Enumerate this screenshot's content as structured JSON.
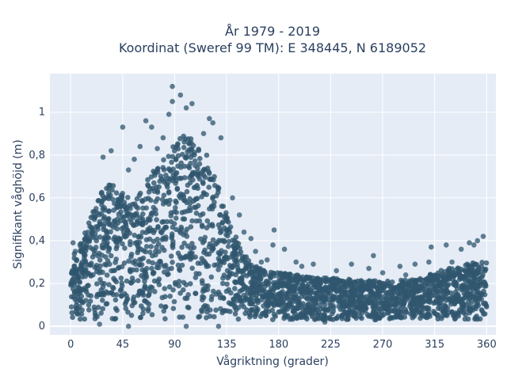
{
  "chart_data": {
    "type": "scatter",
    "title_lines": [
      "År 1979 - 2019",
      "Koordinat (Sweref 99 TM): E 348445, N 6189052"
    ],
    "xlabel": "Vågriktning (grader)",
    "ylabel": "Signifikant våghöjd (m)",
    "xlim": [
      -18,
      368
    ],
    "ylim": [
      -0.04,
      1.18
    ],
    "xticks": [
      0,
      45,
      90,
      135,
      180,
      225,
      270,
      315,
      360
    ],
    "yticks": [
      {
        "value": 0,
        "label": "0"
      },
      {
        "value": 0.2,
        "label": "0,2"
      },
      {
        "value": 0.4,
        "label": "0,4"
      },
      {
        "value": 0.6,
        "label": "0,6"
      },
      {
        "value": 0.8,
        "label": "0,8"
      },
      {
        "value": 1,
        "label": "1"
      }
    ],
    "grid": true,
    "marker_color": "#2f566e",
    "background_color": "#e5ecf6",
    "envelope": [
      {
        "x": 0,
        "y": 0.33
      },
      {
        "x": 10,
        "y": 0.4
      },
      {
        "x": 20,
        "y": 0.55
      },
      {
        "x": 30,
        "y": 0.68
      },
      {
        "x": 40,
        "y": 0.66
      },
      {
        "x": 50,
        "y": 0.6
      },
      {
        "x": 60,
        "y": 0.62
      },
      {
        "x": 70,
        "y": 0.72
      },
      {
        "x": 80,
        "y": 0.78
      },
      {
        "x": 90,
        "y": 0.86
      },
      {
        "x": 100,
        "y": 0.9
      },
      {
        "x": 110,
        "y": 0.86
      },
      {
        "x": 120,
        "y": 0.8
      },
      {
        "x": 130,
        "y": 0.62
      },
      {
        "x": 140,
        "y": 0.45
      },
      {
        "x": 150,
        "y": 0.34
      },
      {
        "x": 160,
        "y": 0.28
      },
      {
        "x": 180,
        "y": 0.25
      },
      {
        "x": 210,
        "y": 0.23
      },
      {
        "x": 240,
        "y": 0.22
      },
      {
        "x": 270,
        "y": 0.21
      },
      {
        "x": 300,
        "y": 0.22
      },
      {
        "x": 320,
        "y": 0.26
      },
      {
        "x": 340,
        "y": 0.29
      },
      {
        "x": 360,
        "y": 0.31
      }
    ],
    "lower_bound": 0.03,
    "outliers": [
      {
        "x": 88,
        "y": 1.12
      },
      {
        "x": 95,
        "y": 1.08
      },
      {
        "x": 88,
        "y": 1.05
      },
      {
        "x": 100,
        "y": 1.02
      },
      {
        "x": 105,
        "y": 1.04
      },
      {
        "x": 85,
        "y": 0.99
      },
      {
        "x": 120,
        "y": 0.97
      },
      {
        "x": 123,
        "y": 0.95
      },
      {
        "x": 65,
        "y": 0.96
      },
      {
        "x": 70,
        "y": 0.93
      },
      {
        "x": 45,
        "y": 0.93
      },
      {
        "x": 35,
        "y": 0.82
      },
      {
        "x": 28,
        "y": 0.79
      },
      {
        "x": 60,
        "y": 0.84
      },
      {
        "x": 80,
        "y": 0.88
      },
      {
        "x": 130,
        "y": 0.88
      },
      {
        "x": 115,
        "y": 0.9
      },
      {
        "x": 140,
        "y": 0.6
      },
      {
        "x": 146,
        "y": 0.52
      },
      {
        "x": 150,
        "y": 0.44
      },
      {
        "x": 156,
        "y": 0.41
      },
      {
        "x": 160,
        "y": 0.35
      },
      {
        "x": 165,
        "y": 0.3
      },
      {
        "x": 170,
        "y": 0.31
      },
      {
        "x": 176,
        "y": 0.45
      },
      {
        "x": 175,
        "y": 0.38
      },
      {
        "x": 185,
        "y": 0.36
      },
      {
        "x": 195,
        "y": 0.3
      },
      {
        "x": 200,
        "y": 0.28
      },
      {
        "x": 210,
        "y": 0.29
      },
      {
        "x": 243,
        "y": 0.29
      },
      {
        "x": 262,
        "y": 0.33
      },
      {
        "x": 258,
        "y": 0.27
      },
      {
        "x": 285,
        "y": 0.28
      },
      {
        "x": 298,
        "y": 0.29
      },
      {
        "x": 312,
        "y": 0.37
      },
      {
        "x": 310,
        "y": 0.3
      },
      {
        "x": 325,
        "y": 0.38
      },
      {
        "x": 330,
        "y": 0.3
      },
      {
        "x": 338,
        "y": 0.36
      },
      {
        "x": 345,
        "y": 0.39
      },
      {
        "x": 349,
        "y": 0.38
      },
      {
        "x": 352,
        "y": 0.4
      },
      {
        "x": 357,
        "y": 0.42
      },
      {
        "x": 2,
        "y": 0.39
      },
      {
        "x": 8,
        "y": 0.38
      },
      {
        "x": 4,
        "y": 0.35
      },
      {
        "x": 15,
        "y": 0.44
      },
      {
        "x": 22,
        "y": 0.55
      },
      {
        "x": 50,
        "y": 0.73
      },
      {
        "x": 55,
        "y": 0.78
      },
      {
        "x": 75,
        "y": 0.83
      },
      {
        "x": 230,
        "y": 0.26
      },
      {
        "x": 270,
        "y": 0.25
      },
      {
        "x": 290,
        "y": 0.24
      },
      {
        "x": 25,
        "y": 0.01
      },
      {
        "x": 50,
        "y": 0.0
      },
      {
        "x": 100,
        "y": 0.0
      },
      {
        "x": 128,
        "y": 0.0
      },
      {
        "x": 220,
        "y": 0.02
      }
    ]
  }
}
